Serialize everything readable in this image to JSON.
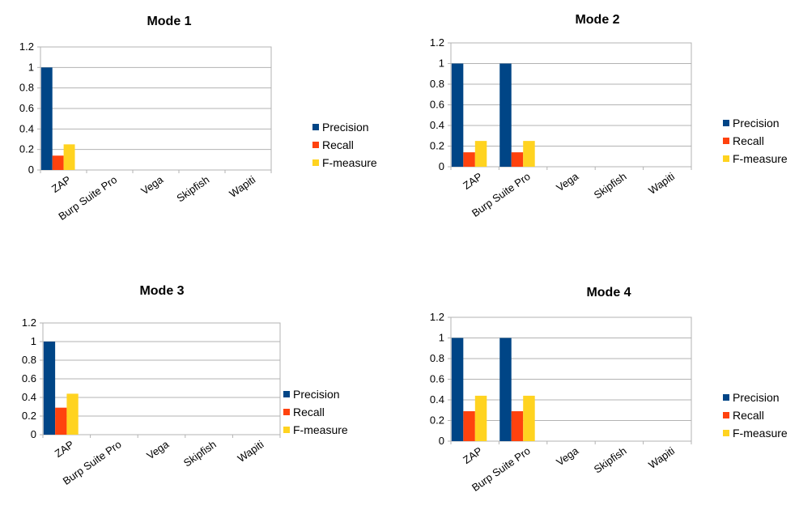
{
  "colors": {
    "precision": "#004586",
    "recall": "#ff420e",
    "fmeasure": "#ffd320",
    "grid": "#b3b3b3"
  },
  "chart_data": [
    {
      "type": "bar",
      "title": "Mode 1",
      "categories": [
        "ZAP",
        "Burp Suite Pro",
        "Vega",
        "Skipfish",
        "Wapiti"
      ],
      "series": [
        {
          "name": "Precision",
          "values": [
            1,
            0,
            0,
            0,
            0
          ]
        },
        {
          "name": "Recall",
          "values": [
            0.14,
            0,
            0,
            0,
            0
          ]
        },
        {
          "name": "F-measure",
          "values": [
            0.25,
            0,
            0,
            0,
            0
          ]
        }
      ],
      "ylim": [
        0,
        1.2
      ],
      "yticks": [
        "0",
        "0.2",
        "0.4",
        "0.6",
        "0.8",
        "1",
        "1.2"
      ],
      "grid": true,
      "legend": "right"
    },
    {
      "type": "bar",
      "title": "Mode 2",
      "categories": [
        "ZAP",
        "Burp Suite Pro",
        "Vega",
        "Skipfish",
        "Wapiti"
      ],
      "series": [
        {
          "name": "Precision",
          "values": [
            1,
            1,
            0,
            0,
            0
          ]
        },
        {
          "name": "Recall",
          "values": [
            0.14,
            0.14,
            0,
            0,
            0
          ]
        },
        {
          "name": "F-measure",
          "values": [
            0.25,
            0.25,
            0,
            0,
            0
          ]
        }
      ],
      "ylim": [
        0,
        1.2
      ],
      "yticks": [
        "0",
        "0.2",
        "0.4",
        "0.6",
        "0.8",
        "1",
        "1.2"
      ],
      "grid": true,
      "legend": "right"
    },
    {
      "type": "bar",
      "title": "Mode 3",
      "categories": [
        "ZAP",
        "Burp Suite Pro",
        "Vega",
        "Skipfish",
        "Wapiti"
      ],
      "series": [
        {
          "name": "Precision",
          "values": [
            1,
            0,
            0,
            0,
            0
          ]
        },
        {
          "name": "Recall",
          "values": [
            0.29,
            0,
            0,
            0,
            0
          ]
        },
        {
          "name": "F-measure",
          "values": [
            0.44,
            0,
            0,
            0,
            0
          ]
        }
      ],
      "ylim": [
        0,
        1.2
      ],
      "yticks": [
        "0",
        "0.2",
        "0.4",
        "0.6",
        "0.8",
        "1",
        "1.2"
      ],
      "grid": true,
      "legend": "right"
    },
    {
      "type": "bar",
      "title": "Mode 4",
      "categories": [
        "ZAP",
        "Burp Suite Pro",
        "Vega",
        "Skipfish",
        "Wapiti"
      ],
      "series": [
        {
          "name": "Precision",
          "values": [
            1,
            1,
            0,
            0,
            0
          ]
        },
        {
          "name": "Recall",
          "values": [
            0.29,
            0.29,
            0,
            0,
            0
          ]
        },
        {
          "name": "F-measure",
          "values": [
            0.44,
            0.44,
            0,
            0,
            0
          ]
        }
      ],
      "ylim": [
        0,
        1.2
      ],
      "yticks": [
        "0",
        "0.2",
        "0.4",
        "0.6",
        "0.8",
        "1",
        "1.2"
      ],
      "grid": true,
      "legend": "right"
    }
  ]
}
